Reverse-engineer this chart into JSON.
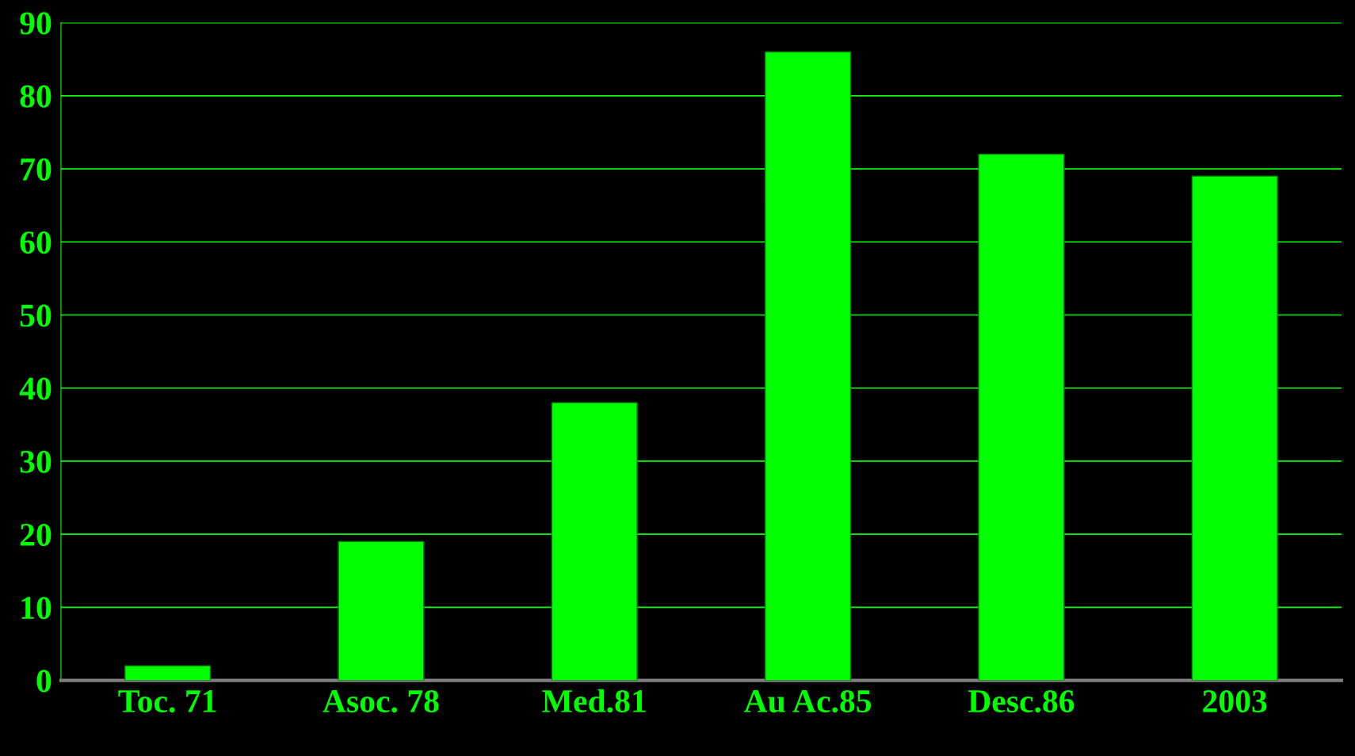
{
  "chart_data": {
    "type": "bar",
    "categories": [
      "Toc. 71",
      "Asoc. 78",
      "Med.81",
      "Au Ac.85",
      "Desc.86",
      "2003"
    ],
    "values": [
      2,
      19,
      38,
      86,
      72,
      69
    ],
    "color": "#00ff00",
    "ylim": [
      0,
      90
    ],
    "yticks": [
      0,
      10,
      20,
      30,
      40,
      50,
      60,
      70,
      80,
      90
    ],
    "grid": "y"
  }
}
